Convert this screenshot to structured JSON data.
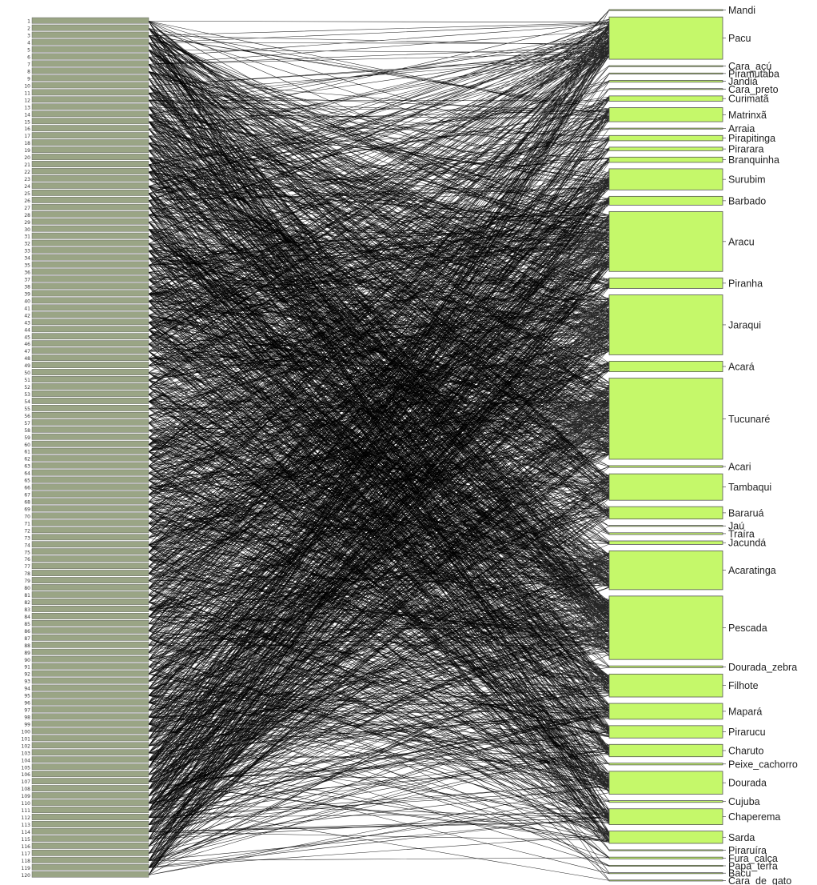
{
  "chart_data": {
    "type": "bipartite-network",
    "title": "",
    "colors": {
      "lower_block_fill": "#9aa585",
      "lower_block_stroke": "#555555",
      "higher_block_fill": "#c5f86a",
      "higher_block_stroke": "#555555",
      "interaction_line": "#000000"
    },
    "lower_level": {
      "node_count": 120,
      "labels": [
        "1",
        "2",
        "3",
        "4",
        "5",
        "6",
        "7",
        "8",
        "9",
        "10",
        "11",
        "12",
        "13",
        "14",
        "15",
        "16",
        "17",
        "18",
        "19",
        "20",
        "21",
        "22",
        "23",
        "24",
        "25",
        "26",
        "27",
        "28",
        "29",
        "30",
        "31",
        "32",
        "33",
        "34",
        "35",
        "36",
        "37",
        "38",
        "39",
        "40",
        "41",
        "42",
        "43",
        "44",
        "45",
        "46",
        "47",
        "48",
        "49",
        "50",
        "51",
        "52",
        "53",
        "54",
        "55",
        "56",
        "57",
        "58",
        "59",
        "60",
        "61",
        "62",
        "63",
        "64",
        "65",
        "66",
        "67",
        "68",
        "69",
        "70",
        "71",
        "72",
        "73",
        "74",
        "75",
        "76",
        "77",
        "78",
        "79",
        "80",
        "81",
        "82",
        "83",
        "84",
        "85",
        "86",
        "87",
        "88",
        "89",
        "90",
        "91",
        "92",
        "93",
        "94",
        "95",
        "96",
        "97",
        "98",
        "99",
        "100",
        "101",
        "102",
        "103",
        "104",
        "105",
        "106",
        "107",
        "108",
        "109",
        "110",
        "111",
        "112",
        "113",
        "114",
        "115",
        "116",
        "117",
        "118",
        "119",
        "120"
      ]
    },
    "higher_level": {
      "nodes": [
        {
          "name": "Mandi",
          "weight": 0.5
        },
        {
          "name": "Pacu",
          "weight": 24
        },
        {
          "name": "Cara_açú",
          "weight": 0.5
        },
        {
          "name": "Piramutaba",
          "weight": 0.5
        },
        {
          "name": "Jandiá",
          "weight": 1
        },
        {
          "name": "Cara_preto",
          "weight": 0.5
        },
        {
          "name": "Curimatã",
          "weight": 3
        },
        {
          "name": "Matrinxã",
          "weight": 8
        },
        {
          "name": "Arraia",
          "weight": 0.5
        },
        {
          "name": "Pirapitinga",
          "weight": 3
        },
        {
          "name": "Pirarara",
          "weight": 2
        },
        {
          "name": "Branquinha",
          "weight": 3
        },
        {
          "name": "Surubim",
          "weight": 12
        },
        {
          "name": "Barbado",
          "weight": 5
        },
        {
          "name": "Aracu",
          "weight": 34
        },
        {
          "name": "Piranha",
          "weight": 6
        },
        {
          "name": "Jaraqui",
          "weight": 34
        },
        {
          "name": "Acará",
          "weight": 6
        },
        {
          "name": "Tucunaré",
          "weight": 46
        },
        {
          "name": "Acari",
          "weight": 1
        },
        {
          "name": "Tambaqui",
          "weight": 15
        },
        {
          "name": "Bararuá",
          "weight": 7
        },
        {
          "name": "Jaú",
          "weight": 0.5
        },
        {
          "name": "Traíra",
          "weight": 1
        },
        {
          "name": "Jacundá",
          "weight": 2
        },
        {
          "name": "Acaratinga",
          "weight": 22
        },
        {
          "name": "Pescada",
          "weight": 36
        },
        {
          "name": "Dourada_zebra",
          "weight": 1
        },
        {
          "name": "Filhote",
          "weight": 13
        },
        {
          "name": "Mapará",
          "weight": 9
        },
        {
          "name": "Pirarucu",
          "weight": 7
        },
        {
          "name": "Charuto",
          "weight": 7
        },
        {
          "name": "Peixe_cachorro",
          "weight": 1
        },
        {
          "name": "Dourada",
          "weight": 13
        },
        {
          "name": "Cujuba",
          "weight": 1
        },
        {
          "name": "Chaperema",
          "weight": 9
        },
        {
          "name": "Sarda",
          "weight": 7
        },
        {
          "name": "Piraruíra",
          "weight": 0.5
        },
        {
          "name": "Fura_calça",
          "weight": 1
        },
        {
          "name": "Papa_terra",
          "weight": 0.5
        },
        {
          "name": "Bacu",
          "weight": 0.5
        },
        {
          "name": "Cara_de_gato",
          "weight": 0.5
        }
      ]
    }
  }
}
